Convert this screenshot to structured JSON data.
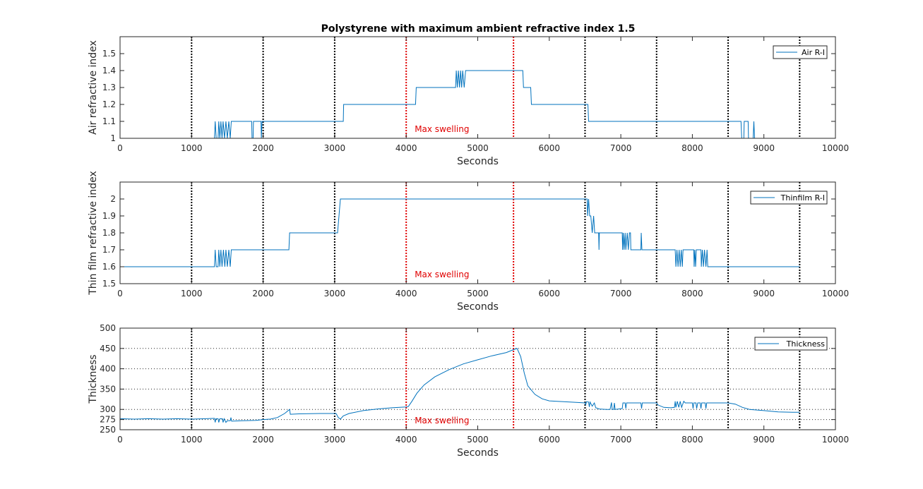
{
  "colors": {
    "series": "#0072BD",
    "black_marker": "#000000",
    "red_marker": "#e00000",
    "axes": "#262626"
  },
  "chart_data": [
    {
      "type": "line",
      "title": "Polystyrene with maximum ambient refractive index 1.5",
      "xlabel": "Seconds",
      "ylabel": "Air refractive index",
      "xlim": [
        0,
        10000
      ],
      "ylim": [
        1,
        1.6
      ],
      "xticks": [
        "0",
        "1000",
        "2000",
        "3000",
        "4000",
        "5000",
        "6000",
        "7000",
        "8000",
        "9000",
        "10000"
      ],
      "yticks": [
        "1",
        "1.1",
        "1.2",
        "1.3",
        "1.4",
        "1.5"
      ],
      "ytick_values": [
        1,
        1.1,
        1.2,
        1.3,
        1.4,
        1.5
      ],
      "grid": false,
      "legend": {
        "label": "Air R-I",
        "location": "top-right"
      },
      "annotation": "Max swelling",
      "markers_black": [
        1000,
        2000,
        3000,
        6500,
        7500,
        8500,
        9500
      ],
      "markers_red": [
        4000,
        5500
      ],
      "series": [
        {
          "name": "Air R-I",
          "points": [
            [
              0,
              1.0
            ],
            [
              1320,
              1.0
            ],
            [
              1330,
              1.1
            ],
            [
              1345,
              1.0
            ],
            [
              1370,
              1.0
            ],
            [
              1380,
              1.1
            ],
            [
              1395,
              1.0
            ],
            [
              1410,
              1.1
            ],
            [
              1425,
              1.0
            ],
            [
              1440,
              1.1
            ],
            [
              1460,
              1.0
            ],
            [
              1480,
              1.1
            ],
            [
              1500,
              1.0
            ],
            [
              1520,
              1.1
            ],
            [
              1540,
              1.0
            ],
            [
              1555,
              1.1
            ],
            [
              1840,
              1.1
            ],
            [
              1845,
              1.0
            ],
            [
              1860,
              1.0
            ],
            [
              1865,
              1.1
            ],
            [
              1970,
              1.1
            ],
            [
              1975,
              1.0
            ],
            [
              1985,
              1.1
            ],
            [
              3120,
              1.1
            ],
            [
              3125,
              1.2
            ],
            [
              4130,
              1.2
            ],
            [
              4140,
              1.3
            ],
            [
              4690,
              1.3
            ],
            [
              4700,
              1.4
            ],
            [
              4715,
              1.3
            ],
            [
              4730,
              1.4
            ],
            [
              4745,
              1.3
            ],
            [
              4760,
              1.4
            ],
            [
              4775,
              1.3
            ],
            [
              4790,
              1.4
            ],
            [
              4810,
              1.3
            ],
            [
              4830,
              1.4
            ],
            [
              5630,
              1.4
            ],
            [
              5640,
              1.3
            ],
            [
              5740,
              1.3
            ],
            [
              5750,
              1.2
            ],
            [
              6540,
              1.2
            ],
            [
              6550,
              1.1
            ],
            [
              8680,
              1.1
            ],
            [
              8690,
              1.0
            ],
            [
              8720,
              1.0
            ],
            [
              8725,
              1.1
            ],
            [
              8780,
              1.1
            ],
            [
              8785,
              1.0
            ],
            [
              8850,
              1.0
            ],
            [
              8860,
              1.1
            ],
            [
              8870,
              1.0
            ],
            [
              9500,
              1.0
            ]
          ]
        }
      ]
    },
    {
      "type": "line",
      "xlabel": "Seconds",
      "ylabel": "Thin film refractive index",
      "xlim": [
        0,
        10000
      ],
      "ylim": [
        1.5,
        2.1
      ],
      "xticks": [
        "0",
        "1000",
        "2000",
        "3000",
        "4000",
        "5000",
        "6000",
        "7000",
        "8000",
        "9000",
        "10000"
      ],
      "yticks": [
        "1.5",
        "1.6",
        "1.7",
        "1.8",
        "1.9",
        "2"
      ],
      "ytick_values": [
        1.5,
        1.6,
        1.7,
        1.8,
        1.9,
        2.0
      ],
      "grid": false,
      "legend": {
        "label": "Thinfilm R-I",
        "location": "top-right"
      },
      "annotation": "Max swelling",
      "markers_black": [
        1000,
        2000,
        3000,
        6500,
        7500,
        8500,
        9500
      ],
      "markers_red": [
        4000,
        5500
      ],
      "series": [
        {
          "name": "Thinfilm R-I",
          "points": [
            [
              0,
              1.6
            ],
            [
              1320,
              1.6
            ],
            [
              1330,
              1.7
            ],
            [
              1345,
              1.6
            ],
            [
              1370,
              1.6
            ],
            [
              1380,
              1.7
            ],
            [
              1395,
              1.6
            ],
            [
              1410,
              1.7
            ],
            [
              1425,
              1.6
            ],
            [
              1445,
              1.7
            ],
            [
              1465,
              1.6
            ],
            [
              1480,
              1.7
            ],
            [
              1500,
              1.6
            ],
            [
              1520,
              1.7
            ],
            [
              1540,
              1.6
            ],
            [
              1555,
              1.7
            ],
            [
              2360,
              1.7
            ],
            [
              2370,
              1.8
            ],
            [
              3020,
              1.8
            ],
            [
              3040,
              1.8
            ],
            [
              3060,
              1.9
            ],
            [
              3080,
              2.0
            ],
            [
              6530,
              2.0
            ],
            [
              6535,
              1.9
            ],
            [
              6550,
              2.0
            ],
            [
              6565,
              1.9
            ],
            [
              6580,
              1.9
            ],
            [
              6600,
              1.8
            ],
            [
              6620,
              1.9
            ],
            [
              6635,
              1.8
            ],
            [
              6690,
              1.8
            ],
            [
              6695,
              1.7
            ],
            [
              6700,
              1.8
            ],
            [
              7020,
              1.8
            ],
            [
              7025,
              1.7
            ],
            [
              7035,
              1.8
            ],
            [
              7045,
              1.7
            ],
            [
              7060,
              1.8
            ],
            [
              7070,
              1.7
            ],
            [
              7090,
              1.8
            ],
            [
              7105,
              1.7
            ],
            [
              7120,
              1.8
            ],
            [
              7135,
              1.8
            ],
            [
              7140,
              1.7
            ],
            [
              7280,
              1.7
            ],
            [
              7285,
              1.8
            ],
            [
              7295,
              1.7
            ],
            [
              7760,
              1.7
            ],
            [
              7770,
              1.6
            ],
            [
              7785,
              1.7
            ],
            [
              7800,
              1.6
            ],
            [
              7815,
              1.7
            ],
            [
              7830,
              1.6
            ],
            [
              7845,
              1.7
            ],
            [
              7860,
              1.6
            ],
            [
              7870,
              1.7
            ],
            [
              8020,
              1.7
            ],
            [
              8025,
              1.6
            ],
            [
              8035,
              1.7
            ],
            [
              8045,
              1.6
            ],
            [
              8055,
              1.7
            ],
            [
              8120,
              1.7
            ],
            [
              8125,
              1.6
            ],
            [
              8140,
              1.7
            ],
            [
              8155,
              1.6
            ],
            [
              8170,
              1.7
            ],
            [
              8190,
              1.6
            ],
            [
              8205,
              1.7
            ],
            [
              8215,
              1.6
            ],
            [
              9500,
              1.6
            ]
          ]
        }
      ]
    },
    {
      "type": "line",
      "xlabel": "Seconds",
      "ylabel": "Thickness",
      "xlim": [
        0,
        10000
      ],
      "ylim": [
        250,
        500
      ],
      "xticks": [
        "0",
        "1000",
        "2000",
        "3000",
        "4000",
        "5000",
        "6000",
        "7000",
        "8000",
        "9000",
        "10000"
      ],
      "yticks": [
        "250",
        "275",
        "300",
        "350",
        "400",
        "450",
        "500"
      ],
      "ytick_values": [
        250,
        275,
        300,
        350,
        400,
        450,
        500
      ],
      "grid": true,
      "legend": {
        "label": "Thickness",
        "location": "top-right"
      },
      "annotation": "Max swelling",
      "markers_black": [
        1000,
        2000,
        3000,
        6500,
        7500,
        8500,
        9500
      ],
      "markers_red": [
        4000,
        5500
      ],
      "series": [
        {
          "name": "Thickness",
          "points": [
            [
              0,
              277
            ],
            [
              200,
              276
            ],
            [
              400,
              277
            ],
            [
              600,
              276
            ],
            [
              800,
              277
            ],
            [
              1000,
              276
            ],
            [
              1200,
              277
            ],
            [
              1320,
              278
            ],
            [
              1330,
              268
            ],
            [
              1340,
              277
            ],
            [
              1370,
              277
            ],
            [
              1380,
              268
            ],
            [
              1395,
              277
            ],
            [
              1430,
              277
            ],
            [
              1440,
              268
            ],
            [
              1455,
              277
            ],
            [
              1480,
              268
            ],
            [
              1500,
              272
            ],
            [
              1540,
              272
            ],
            [
              1550,
              280
            ],
            [
              1560,
              271
            ],
            [
              1700,
              272
            ],
            [
              1900,
              273
            ],
            [
              2000,
              275
            ],
            [
              2100,
              276
            ],
            [
              2200,
              280
            ],
            [
              2300,
              290
            ],
            [
              2370,
              300
            ],
            [
              2380,
              288
            ],
            [
              2500,
              289
            ],
            [
              2800,
              290
            ],
            [
              3000,
              290
            ],
            [
              3020,
              290
            ],
            [
              3050,
              280
            ],
            [
              3080,
              276
            ],
            [
              3120,
              284
            ],
            [
              3200,
              290
            ],
            [
              3400,
              297
            ],
            [
              3600,
              301
            ],
            [
              3800,
              304
            ],
            [
              4000,
              306
            ],
            [
              4030,
              307
            ],
            [
              4080,
              320
            ],
            [
              4150,
              340
            ],
            [
              4250,
              360
            ],
            [
              4400,
              380
            ],
            [
              4600,
              398
            ],
            [
              4800,
              412
            ],
            [
              5000,
              422
            ],
            [
              5200,
              432
            ],
            [
              5400,
              440
            ],
            [
              5500,
              447
            ],
            [
              5550,
              450
            ],
            [
              5600,
              430
            ],
            [
              5650,
              390
            ],
            [
              5700,
              358
            ],
            [
              5800,
              337
            ],
            [
              5900,
              326
            ],
            [
              6000,
              321
            ],
            [
              6200,
              319
            ],
            [
              6400,
              317
            ],
            [
              6500,
              316
            ],
            [
              6510,
              312
            ],
            [
              6520,
              319
            ],
            [
              6550,
              318
            ],
            [
              6560,
              306
            ],
            [
              6570,
              318
            ],
            [
              6600,
              308
            ],
            [
              6630,
              316
            ],
            [
              6650,
              304
            ],
            [
              6700,
              301
            ],
            [
              6800,
              300
            ],
            [
              6850,
              300
            ],
            [
              6870,
              317
            ],
            [
              6880,
              300
            ],
            [
              6900,
              300
            ],
            [
              6910,
              316
            ],
            [
              6920,
              300
            ],
            [
              7020,
              302
            ],
            [
              7030,
              316
            ],
            [
              7060,
              316
            ],
            [
              7070,
              302
            ],
            [
              7080,
              316
            ],
            [
              7200,
              316
            ],
            [
              7280,
              316
            ],
            [
              7290,
              302
            ],
            [
              7300,
              316
            ],
            [
              7500,
              316
            ],
            [
              7520,
              311
            ],
            [
              7600,
              305
            ],
            [
              7700,
              304
            ],
            [
              7750,
              305
            ],
            [
              7760,
              320
            ],
            [
              7770,
              305
            ],
            [
              7790,
              320
            ],
            [
              7810,
              305
            ],
            [
              7830,
              320
            ],
            [
              7850,
              305
            ],
            [
              7880,
              320
            ],
            [
              7900,
              316
            ],
            [
              8000,
              316
            ],
            [
              8010,
              302
            ],
            [
              8020,
              316
            ],
            [
              8050,
              316
            ],
            [
              8060,
              302
            ],
            [
              8075,
              316
            ],
            [
              8110,
              316
            ],
            [
              8120,
              302
            ],
            [
              8130,
              316
            ],
            [
              8180,
              316
            ],
            [
              8190,
              302
            ],
            [
              8200,
              316
            ],
            [
              8500,
              316
            ],
            [
              8600,
              313
            ],
            [
              8700,
              305
            ],
            [
              8800,
              300
            ],
            [
              9000,
              297
            ],
            [
              9200,
              294
            ],
            [
              9400,
              293
            ],
            [
              9500,
              293
            ]
          ]
        }
      ]
    }
  ]
}
